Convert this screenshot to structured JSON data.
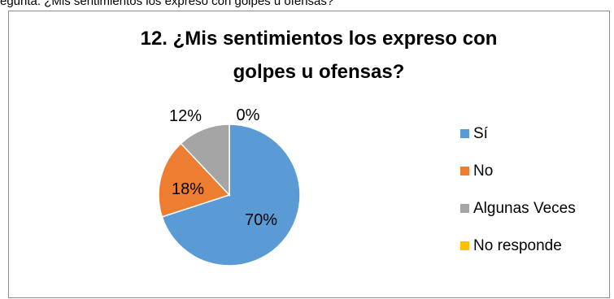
{
  "caption_fragment": "egunta: ¿Mis sentimientos los expreso con golpes u ofensas?",
  "chart_data": {
    "type": "pie",
    "title_line1": "12. ¿Mis sentimientos los expreso con",
    "title_line2": "golpes u ofensas?",
    "categories": [
      "Sí",
      "No",
      "Algunas Veces",
      "No responde"
    ],
    "values": [
      70,
      18,
      12,
      0
    ],
    "labels": [
      "70%",
      "18%",
      "12%",
      "0%"
    ],
    "colors": [
      "#5b9bd5",
      "#ed7d31",
      "#a5a5a5",
      "#ffc000"
    ],
    "legend_position": "right"
  }
}
